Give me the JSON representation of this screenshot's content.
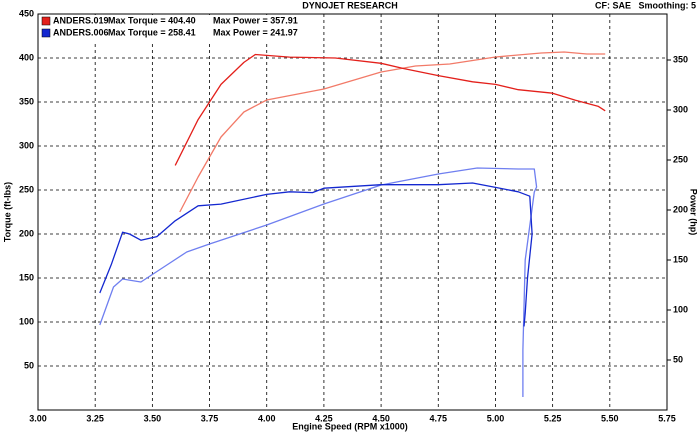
{
  "chart_data": {
    "type": "line",
    "title": "DYNOJET RESEARCH",
    "settings_text": "CF: SAE   Smoothing: 5",
    "x_label": "Engine Speed (RPM x1000)",
    "y_label": "Torque (ft-lbs)",
    "y2_label": "Power (hp)",
    "xlim": [
      3.0,
      5.75
    ],
    "xticks": [
      {
        "value": 3.0,
        "label": "3.00"
      },
      {
        "value": 3.25,
        "label": "3.25"
      },
      {
        "value": 3.5,
        "label": "3.50"
      },
      {
        "value": 3.75,
        "label": "3.75"
      },
      {
        "value": 4.0,
        "label": "4.00"
      },
      {
        "value": 4.25,
        "label": "4.25"
      },
      {
        "value": 4.5,
        "label": "4.50"
      },
      {
        "value": 4.75,
        "label": "4.75"
      },
      {
        "value": 5.0,
        "label": "5.00"
      },
      {
        "value": 5.25,
        "label": "5.25"
      },
      {
        "value": 5.5,
        "label": "5.50"
      },
      {
        "value": 5.75,
        "label": "5.75"
      }
    ],
    "ylim": [
      0,
      450
    ],
    "yticks": [
      50,
      100,
      150,
      200,
      250,
      300,
      350,
      400,
      450
    ],
    "y2lim": [
      0,
      396
    ],
    "y2ticks": [
      50,
      100,
      150,
      200,
      250,
      300,
      350
    ],
    "grid": true,
    "runs": [
      {
        "name": "ANDERS.019",
        "max_torque": "Max Torque = 404.40",
        "max_power": "Max Power = 357.91",
        "color": "#e3201b",
        "power_color": "#f27a68",
        "torque_x": [
          3.6,
          3.7,
          3.8,
          3.9,
          3.95,
          4.1,
          4.3,
          4.5,
          4.6,
          4.75,
          4.9,
          5.0,
          5.1,
          5.25,
          5.35,
          5.45,
          5.48
        ],
        "torque": [
          278,
          330,
          370,
          395,
          404,
          401,
          400,
          394,
          388,
          380,
          373,
          370,
          364,
          360,
          352,
          345,
          340
        ],
        "power_x": [
          3.62,
          3.7,
          3.8,
          3.9,
          4.0,
          4.25,
          4.5,
          4.65,
          4.8,
          5.0,
          5.2,
          5.3,
          5.4,
          5.48
        ],
        "power": [
          198,
          233,
          273,
          298,
          310,
          321,
          338,
          344,
          346,
          353,
          357,
          358,
          356,
          356
        ]
      },
      {
        "name": "ANDERS.006",
        "max_torque": "Max Torque = 258.41",
        "max_power": "Max Power = 241.97",
        "color": "#1428d0",
        "power_color": "#6f7ff0",
        "torque_x": [
          3.27,
          3.32,
          3.37,
          3.4,
          3.45,
          3.52,
          3.6,
          3.7,
          3.8,
          4.0,
          4.1,
          4.2,
          4.25,
          4.5,
          4.75,
          4.9,
          5.0,
          5.1,
          5.15,
          5.16,
          5.14,
          5.13,
          5.125
        ],
        "torque": [
          133,
          165,
          202,
          200,
          193,
          197,
          215,
          232,
          234,
          245,
          248,
          247,
          252,
          256,
          256,
          258,
          253,
          248,
          243,
          200,
          150,
          110,
          95
        ],
        "power_x": [
          3.27,
          3.33,
          3.37,
          3.45,
          3.55,
          3.65,
          3.75,
          4.0,
          4.25,
          4.5,
          4.75,
          4.92,
          5.1,
          5.17,
          5.18,
          5.17,
          5.13,
          5.12,
          5.12
        ],
        "power": [
          85,
          123,
          131,
          128,
          143,
          158,
          166,
          185,
          206,
          225,
          236,
          242,
          241,
          241,
          223,
          218,
          150,
          60,
          13
        ]
      }
    ]
  }
}
